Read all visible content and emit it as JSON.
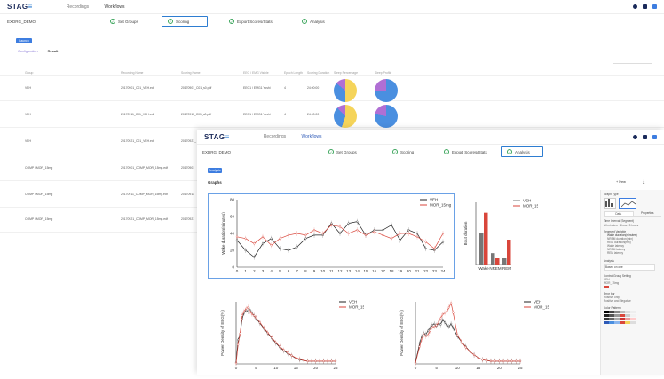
{
  "back": {
    "logo": "STAG",
    "logo_suffix": "≡",
    "nav": [
      "Recordings",
      "Workflows"
    ],
    "project": "EXDRG_DEMO",
    "steps": [
      "Set Groups",
      "Scoring",
      "Export Scores/Stats",
      "Analysis"
    ],
    "button": "Launch",
    "tabs": [
      "Configuration",
      "Result"
    ],
    "columns": [
      "Group",
      "Recording Name",
      "Scoring Name",
      "EEG / EMG Visible",
      "Epoch Length",
      "Scoring Duration",
      "Sleep Percentage",
      "Sleep Profile"
    ],
    "rows": [
      {
        "group": "VEH",
        "rec": "20170901_C01_VEH.edf",
        "score": "20170901_C01_s0.pdf",
        "eeg": "EEG1 / EMG1 Yoshi",
        "epoch": "4",
        "dur": "24:00:00"
      },
      {
        "group": "VEH",
        "rec": "20170911_C01_VEH.edf",
        "score": "20170911_C01_s0.pdf",
        "eeg": "EEG1 / EMG1 Yoshi",
        "epoch": "4",
        "dur": "24:00:00"
      },
      {
        "group": "VEH",
        "rec": "20170921_C01_VEH.edf",
        "score": "20170921_",
        "eeg": "",
        "epoch": "",
        "dur": ""
      },
      {
        "group": "COMP / MOR_15mg",
        "rec": "20170901_COMP_MOR_15mg.edf",
        "score": "20170901",
        "eeg": "",
        "epoch": "",
        "dur": ""
      },
      {
        "group": "COMP / MOR_15mg",
        "rec": "20170911_COMP_MOR_15mg.edf",
        "score": "20170911",
        "eeg": "",
        "epoch": "",
        "dur": ""
      },
      {
        "group": "COMP / MOR_15mg",
        "rec": "20170921_COMP_MOR_15mg.edf",
        "score": "20170921",
        "eeg": "",
        "epoch": "",
        "dur": ""
      }
    ]
  },
  "front": {
    "logo": "STAG",
    "nav": [
      "Recordings",
      "Workflows"
    ],
    "project": "EXDRG_DEMO",
    "steps": [
      "Set Groups",
      "Scoring",
      "Export Scores/Stats",
      "Analysis"
    ],
    "button": "Analysis",
    "graphs_title": "Graphs",
    "new_button": "+ New",
    "sidebar": {
      "graph_type": "Graph Type",
      "tabs": [
        "Data",
        "Properties"
      ],
      "time_interval_label": "Time Interval (Segment)",
      "intervals": [
        "All minutes",
        "1 hour",
        "3 hours"
      ],
      "segment_label": "Segment Variable",
      "vars": [
        "Wake duration(minutes)",
        "NREM duration(min)",
        "REM duration(min)",
        "Wake latency",
        "NREM latency",
        "REM latency"
      ],
      "analysis_label": "Analysis",
      "analysis_value": "Based on one",
      "group_label": "Control Group Setting",
      "groups": [
        "VEH",
        "MOR_15mg"
      ],
      "error_label": "Error bar",
      "errors": [
        "Positive only",
        "Positive and Negative"
      ],
      "color_label": "Color Pattern"
    }
  },
  "chart_data": [
    {
      "type": "line",
      "ylabel": "Wake duration(minutes)",
      "ylim": [
        0,
        80
      ],
      "yticks": [
        0,
        20,
        40,
        60,
        80
      ],
      "x": [
        0,
        1,
        2,
        3,
        4,
        5,
        6,
        7,
        8,
        9,
        10,
        11,
        12,
        13,
        14,
        15,
        16,
        17,
        18,
        19,
        20,
        21,
        22,
        23,
        24
      ],
      "series": [
        {
          "name": "VEH",
          "color": "#222222",
          "values": [
            32,
            20,
            12,
            28,
            34,
            22,
            20,
            24,
            34,
            38,
            38,
            52,
            40,
            52,
            54,
            38,
            44,
            44,
            50,
            32,
            44,
            40,
            22,
            20,
            30
          ]
        },
        {
          "name": "MOR_15mg",
          "color": "#d9463b",
          "values": [
            36,
            34,
            28,
            36,
            26,
            34,
            38,
            40,
            38,
            44,
            40,
            50,
            48,
            40,
            44,
            38,
            42,
            38,
            34,
            40,
            40,
            36,
            30,
            22,
            40
          ]
        }
      ]
    },
    {
      "type": "bar",
      "ylabel": "Bout duration",
      "categories": [
        "Wake",
        "NREM",
        "REM"
      ],
      "series": [
        {
          "name": "VEH",
          "color": "#777777",
          "values": [
            3.0,
            1.1,
            0.6
          ]
        },
        {
          "name": "MOR_15mg",
          "color": "#d9463b",
          "values": [
            5.0,
            0.6,
            2.4
          ]
        }
      ]
    },
    {
      "type": "line",
      "ylabel": "Power Density of EEG(%)",
      "xticks": [
        0,
        5,
        10,
        15,
        20,
        25
      ],
      "x": [
        0,
        0.5,
        1,
        1.5,
        2,
        2.5,
        3,
        3.5,
        4,
        4.5,
        5,
        6,
        7,
        8,
        9,
        10,
        11,
        12,
        13,
        14,
        15,
        16,
        17,
        18,
        19,
        20,
        21,
        22,
        23,
        24,
        25
      ],
      "series": [
        {
          "name": "VEH",
          "color": "#222222",
          "values": [
            0.2,
            3.5,
            4.2,
            6.5,
            7.4,
            7.8,
            7.6,
            7.8,
            7.4,
            7.0,
            6.6,
            5.9,
            5.1,
            4.4,
            3.7,
            3.0,
            2.4,
            1.9,
            1.5,
            1.2,
            0.8,
            0.6,
            0.5,
            0.4,
            0.4,
            0.4,
            0.4,
            0.4,
            0.4,
            0.4,
            0.4
          ]
        },
        {
          "name": "MOR_15mg",
          "color": "#d9463b",
          "values": [
            0.1,
            2.8,
            4.4,
            7.0,
            7.6,
            8.0,
            8.2,
            7.6,
            7.2,
            7.0,
            6.7,
            6.0,
            5.2,
            4.5,
            3.8,
            3.1,
            2.5,
            2.0,
            1.6,
            1.2,
            0.9,
            0.7,
            0.5,
            0.4,
            0.4,
            0.4,
            0.4,
            0.4,
            0.4,
            0.4,
            0.4
          ]
        }
      ]
    },
    {
      "type": "line",
      "ylabel": "Power Density of EEG(%)",
      "xticks": [
        0,
        5,
        10,
        15,
        20,
        25
      ],
      "x": [
        0,
        1,
        1.5,
        2,
        2.5,
        3,
        3.5,
        4,
        4.5,
        5,
        5.5,
        6,
        6.5,
        7,
        7.5,
        8,
        8.5,
        9,
        10,
        11,
        12,
        13,
        14,
        15,
        16,
        17,
        18,
        19,
        20,
        21,
        22,
        23,
        24,
        25
      ],
      "series": [
        {
          "name": "VEH",
          "color": "#222222",
          "values": [
            0.2,
            3.0,
            4.0,
            4.4,
            4.3,
            4.8,
            5.2,
            5.6,
            5.8,
            5.5,
            5.9,
            5.7,
            6.4,
            6.0,
            5.6,
            5.4,
            5.8,
            5.2,
            4.0,
            3.2,
            2.5,
            1.8,
            1.3,
            0.9,
            0.6,
            0.5,
            0.4,
            0.4,
            0.4,
            0.4,
            0.4,
            0.4,
            0.4,
            0.4
          ]
        },
        {
          "name": "MOR_15mg",
          "color": "#d9463b",
          "values": [
            0.1,
            2.5,
            3.6,
            4.2,
            4.0,
            4.2,
            4.8,
            5.3,
            5.4,
            5.6,
            6.0,
            6.6,
            7.2,
            7.4,
            7.6,
            8.2,
            8.8,
            7.4,
            4.2,
            3.2,
            2.4,
            1.8,
            1.3,
            0.9,
            0.6,
            0.5,
            0.4,
            0.4,
            0.4,
            0.4,
            0.4,
            0.4,
            0.4,
            0.4
          ]
        }
      ]
    }
  ]
}
